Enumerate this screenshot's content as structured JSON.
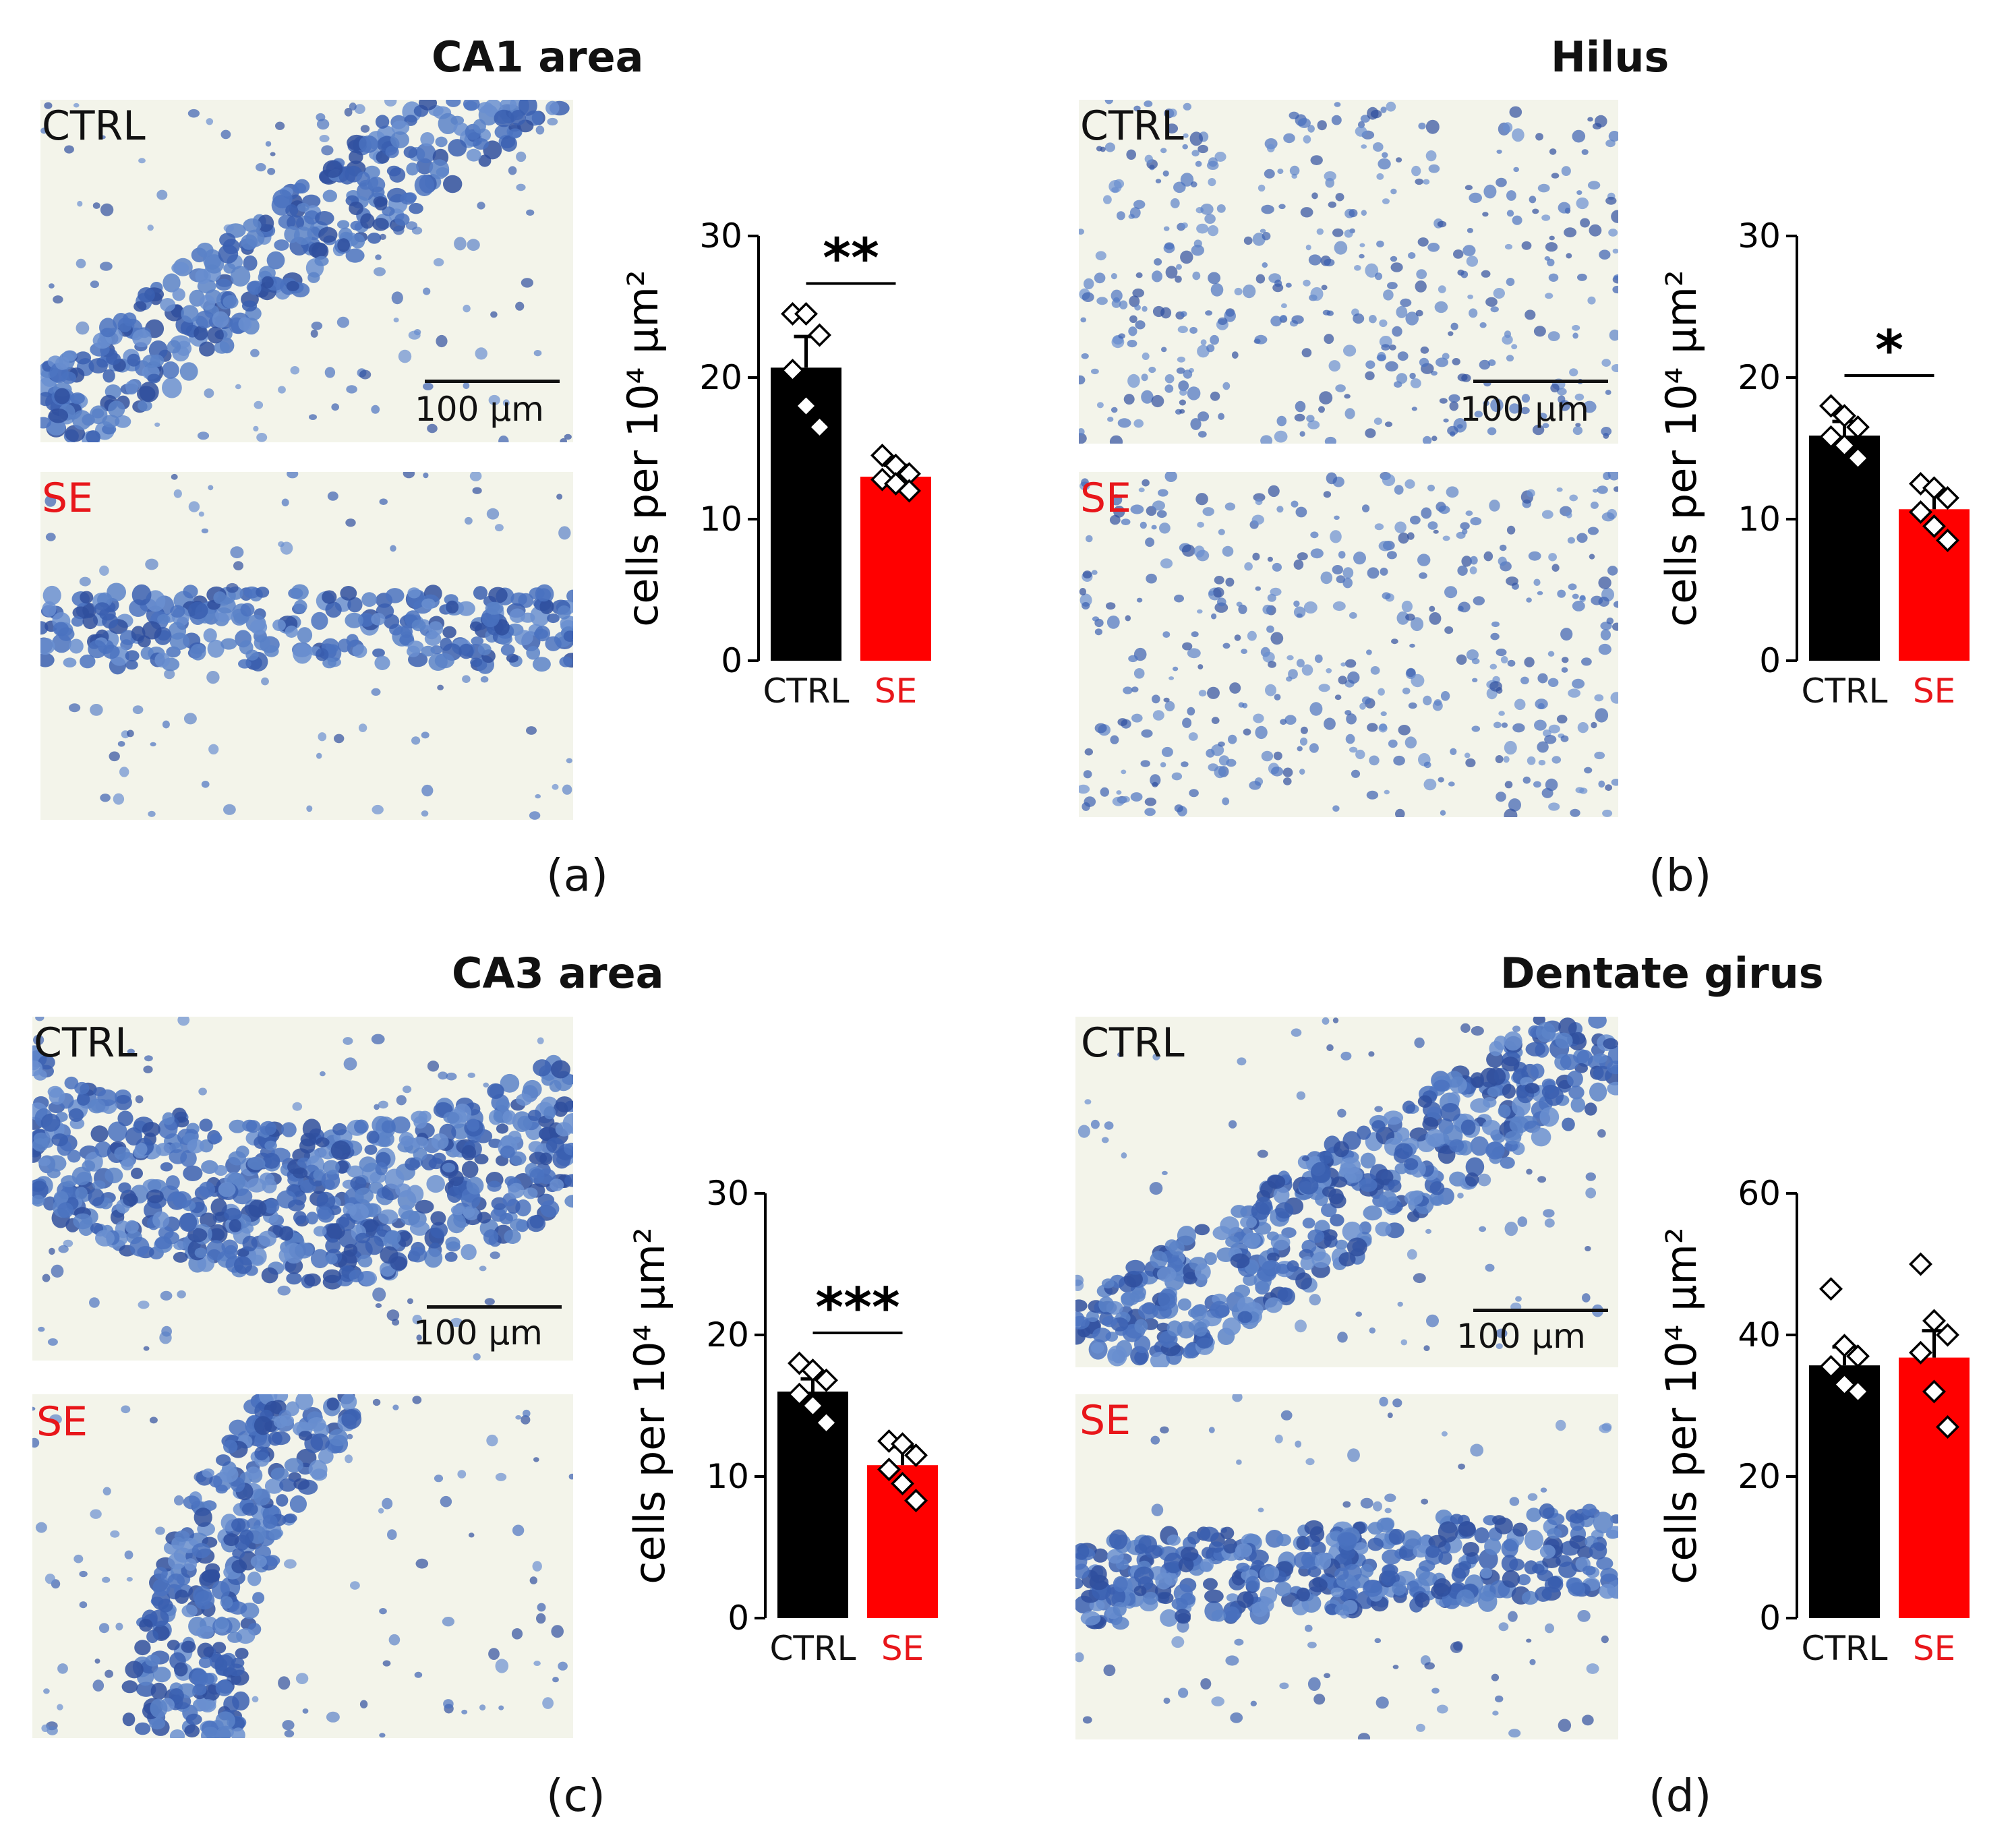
{
  "panels": [
    {
      "id": "a",
      "title": "CA1 area",
      "letter": "(a)",
      "ctrl_label": "CTRL",
      "se_label": "SE",
      "scale_label": "100 µm",
      "chart_data": {
        "type": "bar",
        "categories": [
          "CTRL",
          "SE"
        ],
        "values": [
          20.7,
          13.0
        ],
        "errors": [
          2.2,
          0.8
        ],
        "points": [
          [
            24.5,
            24.5,
            23.0,
            20.5,
            18.0,
            16.5
          ],
          [
            14.5,
            13.8,
            13.2,
            12.8,
            12.5,
            12.0
          ]
        ],
        "ylabel": "cells per 10⁴ µm²",
        "ylim": [
          0,
          30
        ],
        "yticks": [
          0,
          10,
          20,
          30
        ],
        "significance": "**",
        "colors": [
          "#000000",
          "#ff0000"
        ]
      }
    },
    {
      "id": "b",
      "title": "Hilus",
      "letter": "(b)",
      "ctrl_label": "CTRL",
      "se_label": "SE",
      "scale_label": "100 µm",
      "chart_data": {
        "type": "bar",
        "categories": [
          "CTRL",
          "SE"
        ],
        "values": [
          15.9,
          10.7
        ],
        "errors": [
          1.0,
          1.4
        ],
        "points": [
          [
            18.0,
            17.3,
            16.5,
            15.8,
            15.2,
            14.3
          ],
          [
            12.5,
            12.2,
            11.5,
            10.5,
            9.5,
            8.5
          ]
        ],
        "ylabel": "cells per 10⁴ µm²",
        "ylim": [
          0,
          30
        ],
        "yticks": [
          0,
          10,
          20,
          30
        ],
        "significance": "*",
        "colors": [
          "#000000",
          "#ff0000"
        ]
      }
    },
    {
      "id": "c",
      "title": "CA3 area",
      "letter": "(c)",
      "ctrl_label": "CTRL",
      "se_label": "SE",
      "scale_label": "100 µm",
      "chart_data": {
        "type": "bar",
        "categories": [
          "CTRL",
          "SE"
        ],
        "values": [
          16.0,
          10.8
        ],
        "errors": [
          0.9,
          1.3
        ],
        "points": [
          [
            18.0,
            17.5,
            16.8,
            15.8,
            15.0,
            13.8
          ],
          [
            12.5,
            12.3,
            11.5,
            10.5,
            9.5,
            8.3
          ]
        ],
        "ylabel": "cells per 10⁴ µm²",
        "ylim": [
          0,
          30
        ],
        "yticks": [
          0,
          10,
          20,
          30
        ],
        "significance": "***",
        "colors": [
          "#000000",
          "#ff0000"
        ]
      }
    },
    {
      "id": "d",
      "title": "Dentate girus",
      "letter": "(d)",
      "ctrl_label": "CTRL",
      "se_label": "SE",
      "scale_label": "100 µm",
      "chart_data": {
        "type": "bar",
        "categories": [
          "CTRL",
          "SE"
        ],
        "values": [
          35.7,
          36.8
        ],
        "errors": [
          2.6,
          3.8
        ],
        "points": [
          [
            46.5,
            38.5,
            37.0,
            35.5,
            33.0,
            32.0
          ],
          [
            50.0,
            42.0,
            40.0,
            37.5,
            32.0,
            27.0
          ]
        ],
        "ylabel": "cells per 10⁴ µm²",
        "ylim": [
          0,
          60
        ],
        "yticks": [
          0,
          20,
          40,
          60
        ],
        "significance": "",
        "colors": [
          "#000000",
          "#ff0000"
        ]
      }
    }
  ]
}
